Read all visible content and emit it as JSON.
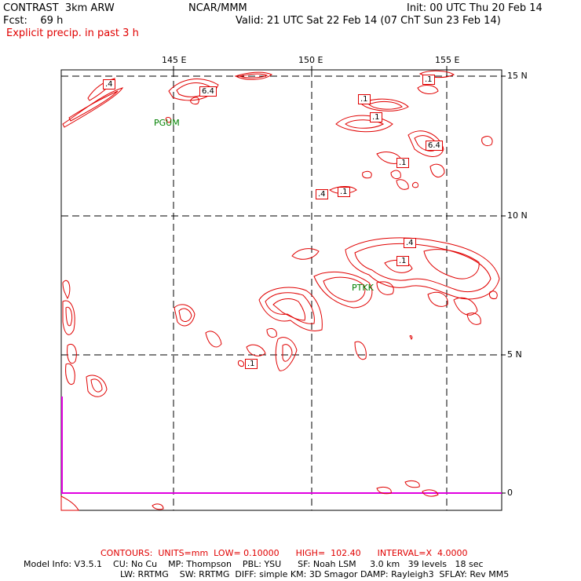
{
  "header": {
    "left_line1": "CONTRAST  3km ARW",
    "center_line1": "NCAR/MMM",
    "right_line1": "Init: 00 UTC Thu 20 Feb 14",
    "left_line2": "Fcst:    69 h",
    "right_line2": "Valid: 21 UTC Sat 22 Feb 14 (07 ChT Sun 23 Feb 14)",
    "field_title": "Explicit precip. in past 3 h"
  },
  "map": {
    "lon_labels": [
      "145 E",
      "150 E",
      "155 E"
    ],
    "lat_labels": [
      "15 N",
      "10 N",
      "5 N",
      "0"
    ],
    "station_labels": [
      "PGUM",
      "PTKK"
    ],
    "contour_labels": [
      ".4",
      "6.4",
      ".1",
      ".1",
      ".1",
      "6.4",
      ".1",
      ".4",
      ".1",
      ".4",
      ".1",
      ".1"
    ],
    "colors": {
      "contour": "#e00000",
      "frame": "#000000",
      "magenta_line": "#e000e0",
      "station": "#008000"
    }
  },
  "footer": {
    "contours_line": "CONTOURS:  UNITS=mm  LOW= 0.10000      HIGH=  102.40      INTERVAL=X  4.0000",
    "model_info_line1": "Model Info: V3.5.1    CU: No Cu    MP: Thompson    PBL: YSU      SF: Noah LSM     3.0 km   39 levels   18 sec",
    "model_info_line2": "LW: RRTMG    SW: RRTMG  DIFF: simple KM: 3D Smagor DAMP: Rayleigh3  SFLAY: Rev MM5"
  }
}
